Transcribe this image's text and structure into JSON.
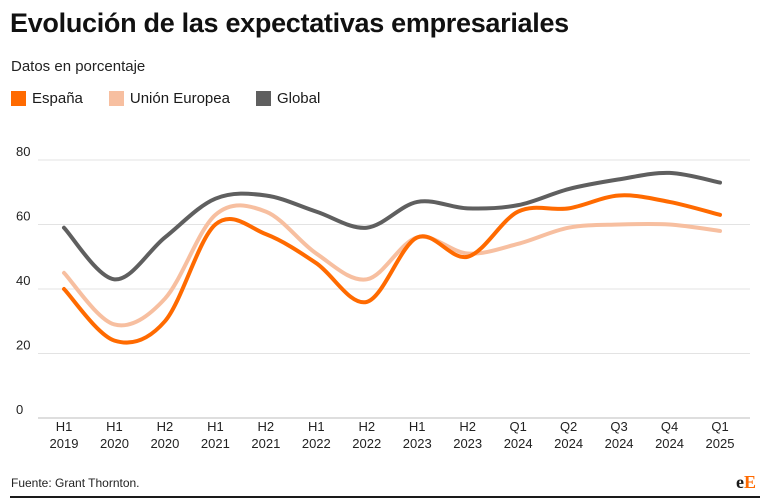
{
  "header": {
    "title": "Evolución de las expectativas empresariales",
    "subtitle": "Datos en porcentaje"
  },
  "footer": {
    "source": "Fuente: Grant Thornton.",
    "logo_main": "e",
    "logo_accent": "E"
  },
  "chart_data": {
    "type": "line",
    "categories": [
      [
        "H1",
        "2019"
      ],
      [
        "H1",
        "2020"
      ],
      [
        "H2",
        "2020"
      ],
      [
        "H1",
        "2021"
      ],
      [
        "H2",
        "2021"
      ],
      [
        "H1",
        "2022"
      ],
      [
        "H2",
        "2022"
      ],
      [
        "H1",
        "2023"
      ],
      [
        "H2",
        "2023"
      ],
      [
        "Q1",
        "2024"
      ],
      [
        "Q2",
        "2024"
      ],
      [
        "Q3",
        "2024"
      ],
      [
        "Q4",
        "2024"
      ],
      [
        "Q1",
        "2025"
      ]
    ],
    "ylim": [
      0,
      80
    ],
    "yticks": [
      0,
      20,
      40,
      60,
      80
    ],
    "grid": true,
    "legend_position": "top-left",
    "series": [
      {
        "name": "España",
        "color": "#ff6a00",
        "values": [
          40,
          24,
          30,
          60,
          57,
          48,
          36,
          56,
          50,
          64,
          65,
          69,
          67,
          63
        ]
      },
      {
        "name": "Unión Europea",
        "color": "#f7bfa0",
        "values": [
          45,
          29,
          37,
          63,
          64,
          51,
          43,
          56,
          51,
          54,
          59,
          60,
          60,
          58
        ]
      },
      {
        "name": "Global",
        "color": "#5f5f5f",
        "values": [
          59,
          43,
          56,
          68,
          69,
          64,
          59,
          67,
          65,
          66,
          71,
          74,
          76,
          73
        ]
      }
    ]
  }
}
